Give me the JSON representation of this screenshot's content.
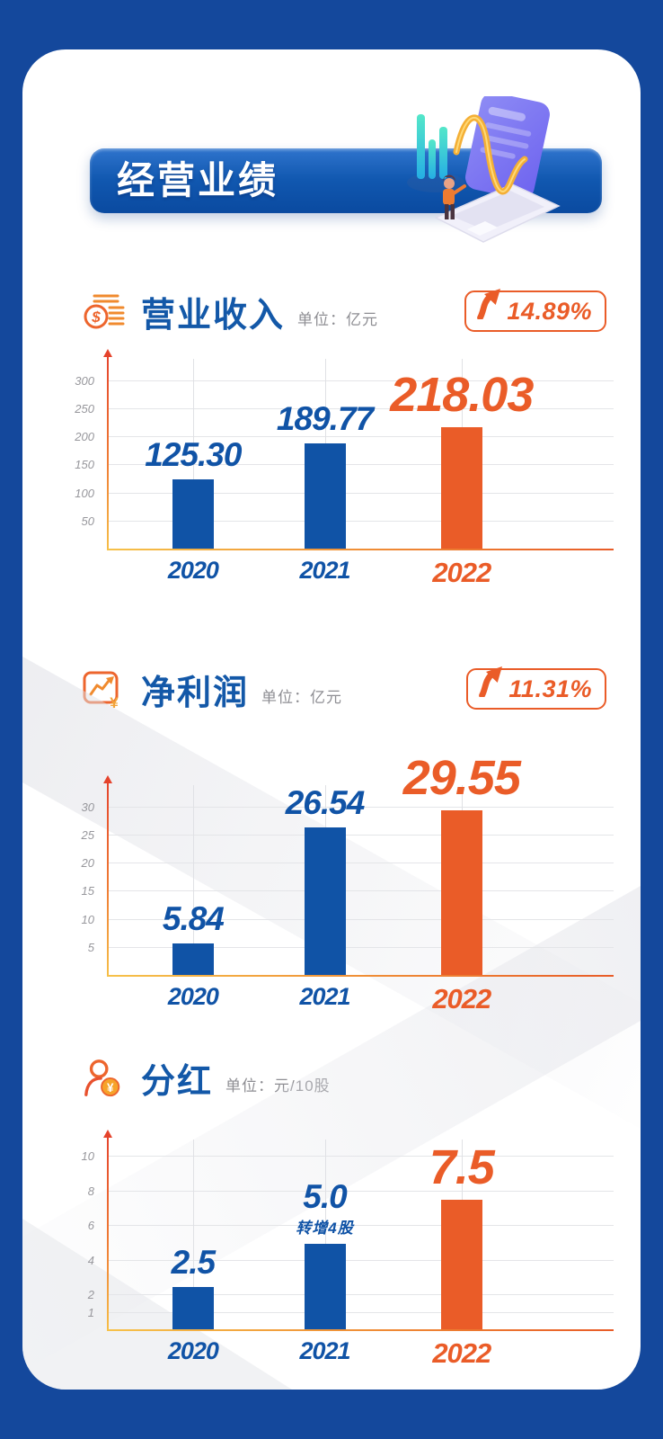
{
  "theme": {
    "background_color": "#14489C",
    "card_color": "#FFFFFF",
    "primary_blue": "#1053A6",
    "accent_orange": "#EA5C28",
    "axis_red": "#E5432C",
    "axis_yellow": "#F6BE47",
    "grid_color": "#E4E5E8",
    "tick_color": "#97979C",
    "unit_color": "#8E8E93"
  },
  "header": {
    "title": "经营业绩",
    "illustration": "laptop-chart-illustration"
  },
  "sections": [
    {
      "icon": "coins-stack-icon",
      "title": "营业收入",
      "unit_label": "单位：亿元",
      "growth": "14.89%"
    },
    {
      "icon": "trend-line-icon",
      "title": "净利润",
      "unit_label": "单位：亿元",
      "growth": "11.31%"
    },
    {
      "icon": "shareholder-coin-icon",
      "title": "分红",
      "unit_label": "单位：元/10股",
      "growth": null
    }
  ],
  "chart_data": [
    {
      "type": "bar",
      "title": "营业收入",
      "unit": "亿元",
      "growth_pct": "14.89%",
      "categories": [
        "2020",
        "2021",
        "2022"
      ],
      "values": [
        125.3,
        189.77,
        218.03
      ],
      "value_labels": [
        "125.30",
        "189.77",
        "218.03"
      ],
      "notes": [
        "",
        "",
        ""
      ],
      "yticks": [
        300,
        250,
        200,
        150,
        100,
        50
      ],
      "ylim": [
        0,
        340
      ],
      "grid": true,
      "legend": "none",
      "highlight_index": 2,
      "bar_colors": [
        "#1053A6",
        "#1053A6",
        "#EA5C28"
      ]
    },
    {
      "type": "bar",
      "title": "净利润",
      "unit": "亿元",
      "growth_pct": "11.31%",
      "categories": [
        "2020",
        "2021",
        "2022"
      ],
      "values": [
        5.84,
        26.54,
        29.55
      ],
      "value_labels": [
        "5.84",
        "26.54",
        "29.55"
      ],
      "notes": [
        "",
        "",
        ""
      ],
      "yticks": [
        30,
        25,
        20,
        15,
        10,
        5
      ],
      "ylim": [
        0,
        34
      ],
      "grid": true,
      "legend": "none",
      "highlight_index": 2,
      "bar_colors": [
        "#1053A6",
        "#1053A6",
        "#EA5C28"
      ]
    },
    {
      "type": "bar",
      "title": "分红",
      "unit": "元/10股",
      "growth_pct": null,
      "categories": [
        "2020",
        "2021",
        "2022"
      ],
      "values": [
        2.5,
        5.0,
        7.5
      ],
      "value_labels": [
        "2.5",
        "5.0",
        "7.5"
      ],
      "notes": [
        "",
        "转增4股",
        ""
      ],
      "yticks": [
        10,
        8,
        6,
        4,
        2,
        1
      ],
      "ylim": [
        0,
        11
      ],
      "grid": true,
      "legend": "none",
      "highlight_index": 2,
      "bar_colors": [
        "#1053A6",
        "#1053A6",
        "#EA5C28"
      ]
    }
  ]
}
